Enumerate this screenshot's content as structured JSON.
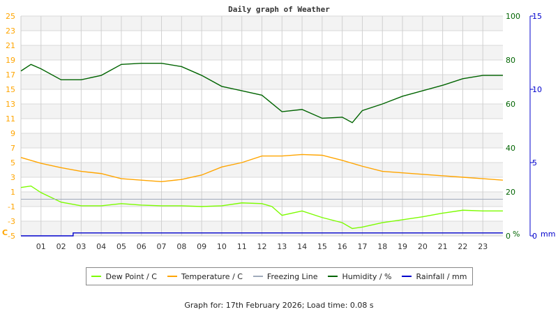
{
  "chart_data": {
    "type": "line",
    "title": "Daily graph of Weather",
    "x_ticks": [
      "01",
      "02",
      "03",
      "04",
      "05",
      "06",
      "07",
      "08",
      "09",
      "10",
      "11",
      "12",
      "13",
      "14",
      "15",
      "16",
      "17",
      "18",
      "19",
      "20",
      "21",
      "22",
      "23"
    ],
    "xlim": [
      0,
      24
    ],
    "left_axis": {
      "unit": "C",
      "lim": [
        -5,
        25
      ],
      "ticks": [
        -5,
        -3,
        -1,
        1,
        3,
        5,
        7,
        9,
        11,
        13,
        15,
        17,
        19,
        21,
        23,
        25
      ],
      "color": "#ffa500"
    },
    "right_axis_humidity": {
      "unit": "%",
      "lim": [
        0,
        100
      ],
      "ticks": [
        0,
        20,
        40,
        60,
        80,
        100
      ],
      "color": "#006400"
    },
    "right_axis_rain": {
      "unit": "mm",
      "lim": [
        0,
        15
      ],
      "ticks": [
        0,
        5,
        10,
        15
      ],
      "color": "#0000cc"
    },
    "grid": true,
    "legend_position": "bottom",
    "series": [
      {
        "name": "Dew Point / C",
        "axis": "left",
        "color": "#7cfc00",
        "x": [
          0,
          0.5,
          1,
          2,
          3,
          4,
          5,
          6,
          7,
          8,
          9,
          10,
          11,
          12,
          12.5,
          13,
          14,
          15,
          16,
          16.5,
          17,
          18,
          19,
          20,
          21,
          22,
          23,
          24
        ],
        "y": [
          1.6,
          1.8,
          0.9,
          -0.4,
          -0.9,
          -0.9,
          -0.6,
          -0.8,
          -0.9,
          -0.9,
          -1.0,
          -0.9,
          -0.5,
          -0.6,
          -1.0,
          -2.2,
          -1.6,
          -2.5,
          -3.2,
          -4.0,
          -3.8,
          -3.2,
          -2.8,
          -2.4,
          -1.9,
          -1.5,
          -1.6,
          -1.6
        ]
      },
      {
        "name": "Temperature / C",
        "axis": "left",
        "color": "#ffa500",
        "x": [
          0,
          1,
          2,
          3,
          4,
          5,
          6,
          7,
          8,
          9,
          10,
          11,
          12,
          13,
          14,
          15,
          16,
          17,
          18,
          19,
          20,
          21,
          22,
          23,
          24
        ],
        "y": [
          5.7,
          4.9,
          4.3,
          3.8,
          3.5,
          2.8,
          2.6,
          2.4,
          2.7,
          3.3,
          4.4,
          5.0,
          5.9,
          5.9,
          6.1,
          6.0,
          5.3,
          4.5,
          3.8,
          3.6,
          3.4,
          3.2,
          3.0,
          2.8,
          2.6
        ]
      },
      {
        "name": "Freezing Line",
        "axis": "left",
        "color": "#a0aabb",
        "x": [
          0,
          24
        ],
        "y": [
          0,
          0
        ]
      },
      {
        "name": "Humidity / %",
        "axis": "humidity",
        "color": "#006400",
        "x": [
          0,
          0.5,
          1,
          2,
          3,
          4,
          5,
          6,
          7,
          8,
          9,
          10,
          11,
          12,
          13,
          14,
          15,
          16,
          16.5,
          17,
          18,
          19,
          20,
          21,
          22,
          23,
          24
        ],
        "y": [
          75,
          78,
          76,
          71,
          71,
          73,
          78,
          78.5,
          78.5,
          77,
          73,
          68,
          66,
          64,
          56.5,
          57.5,
          53.5,
          54,
          51.5,
          57,
          60,
          63.5,
          66,
          68.5,
          71.5,
          73,
          73
        ]
      },
      {
        "name": "Rainfall / mm",
        "axis": "rain",
        "color": "#0000cc",
        "x": [
          0,
          2.6,
          2.6,
          24
        ],
        "y": [
          0,
          0,
          0.2,
          0.2
        ]
      }
    ]
  },
  "footer": "Graph for: 17th February 2026; Load time: 0.08 s"
}
